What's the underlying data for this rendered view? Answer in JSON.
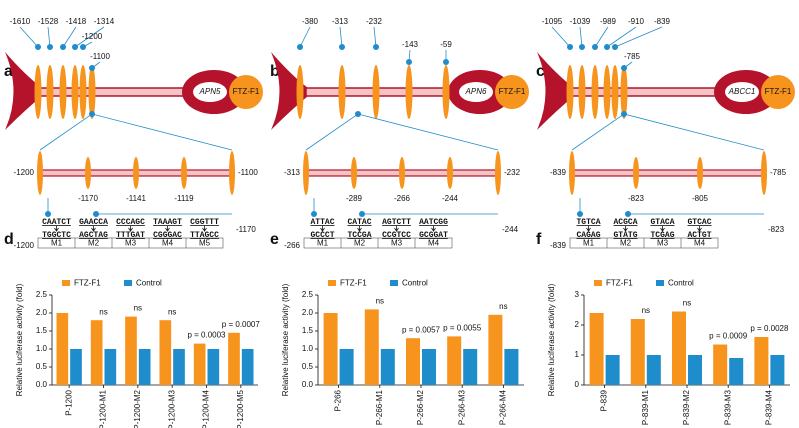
{
  "panels": [
    {
      "letter": "a",
      "gene": "APN5",
      "factor": "FTZ-F1",
      "sites": [
        "-1610",
        "-1528",
        "-1418",
        "-1314",
        "-1200",
        "-1100"
      ],
      "zoom": {
        "start": "-1200",
        "end": "-1100",
        "sites": [
          "-1170",
          "-1141",
          "-1119"
        ]
      },
      "motif": {
        "start": "-1200",
        "end": "-1170",
        "motifs": [
          {
            "top": "CAATCT",
            "bottom": "TGGCTC",
            "name": "M1",
            "color": "#c8642a"
          },
          {
            "top": "GAACCA",
            "bottom": "AGCTAG",
            "name": "M2",
            "color": "#4a7fc1"
          },
          {
            "top": "CCCAGC",
            "bottom": "TTTGAT",
            "name": "M3",
            "color": "#5a8a2a"
          },
          {
            "top": "TAAAGT",
            "bottom": "CGGGAC",
            "name": "M4",
            "color": "#6a3d9a"
          },
          {
            "top": "CGGTTT",
            "bottom": "TTAGCC",
            "name": "M5",
            "color": "#d0287a"
          }
        ]
      }
    },
    {
      "letter": "b",
      "gene": "APN6",
      "factor": "FTZ-F1",
      "sites": [
        "-380",
        "-313",
        "-232",
        "-143",
        "-59"
      ],
      "zoom": {
        "start": "-313",
        "end": "-232",
        "sites": [
          "-289",
          "-266",
          "-244"
        ]
      },
      "motif": {
        "start": "-266",
        "end": "-244",
        "motifs": [
          {
            "top": "ATTAC",
            "bottom": "GCCCT",
            "name": "M1",
            "color": "#c8642a"
          },
          {
            "top": "CATAC",
            "bottom": "TCCGA",
            "name": "M2",
            "color": "#5a8a2a"
          },
          {
            "top": "AGTCTT",
            "bottom": "CCGTCC",
            "name": "M3",
            "color": "#6a3d9a"
          },
          {
            "top": "AATCGG",
            "bottom": "GCGGAT",
            "name": "M4",
            "color": "#d0287a"
          }
        ]
      }
    },
    {
      "letter": "c",
      "gene": "ABCC1",
      "factor": "FTZ-F1",
      "sites": [
        "-1095",
        "-1039",
        "-989",
        "-910",
        "-839",
        "-785"
      ],
      "zoom": {
        "start": "-839",
        "end": "-785",
        "sites": [
          "-823",
          "-805"
        ]
      },
      "motif": {
        "start": "-839",
        "end": "-823",
        "motifs": [
          {
            "top": "TGTCA",
            "bottom": "CAGAG",
            "name": "M1",
            "color": "#c8642a"
          },
          {
            "top": "ACGCA",
            "bottom": "GTATG",
            "name": "M2",
            "color": "#5a8a2a"
          },
          {
            "top": "GTACA",
            "bottom": "TCGAG",
            "name": "M3",
            "color": "#6a3d9a"
          },
          {
            "top": "GTCAC",
            "bottom": "ACTGT",
            "name": "M4",
            "color": "#d0287a"
          }
        ]
      }
    }
  ],
  "chart_data": [
    {
      "type": "bar",
      "label": "d",
      "ylabel": "Relative luciferase activity (fold)",
      "categories": [
        "P-1200",
        "P-1200-M1",
        "P-1200-M2",
        "P-1200-M3",
        "P-1200-M4",
        "P-1200-M5"
      ],
      "series": [
        {
          "name": "FTZ-F1",
          "color": "#f7941d",
          "values": [
            2.0,
            1.8,
            1.9,
            1.8,
            1.15,
            1.45
          ]
        },
        {
          "name": "Control",
          "color": "#1f8ccb",
          "values": [
            1.0,
            1.0,
            1.0,
            1.0,
            1.0,
            1.0
          ]
        }
      ],
      "annotations": [
        null,
        "ns",
        "ns",
        "ns",
        "p = 0.0003",
        "p = 0.0007"
      ],
      "ylim": [
        0,
        2.5
      ],
      "yticks": [
        {
          "value": 0,
          "label": "0.0"
        },
        0.5,
        {
          "value": 1,
          "label": "1.0"
        },
        1.5,
        {
          "value": 2,
          "label": "2.0"
        },
        2.5
      ]
    },
    {
      "type": "bar",
      "label": "e",
      "ylabel": "Relative luciferase activity (fold)",
      "categories": [
        "P-266",
        "P-266-M1",
        "P-266-M2",
        "P-266-M3",
        "P-266-M4"
      ],
      "series": [
        {
          "name": "FTZ-F1",
          "color": "#f7941d",
          "values": [
            2.0,
            2.1,
            1.3,
            1.35,
            1.95
          ]
        },
        {
          "name": "Control",
          "color": "#1f8ccb",
          "values": [
            1.0,
            1.0,
            1.0,
            1.0,
            1.0
          ]
        }
      ],
      "annotations": [
        null,
        "ns",
        "p = 0.0057",
        "p = 0.0055",
        "ns"
      ],
      "ylim": [
        0,
        2.5
      ],
      "yticks": [
        {
          "value": 0,
          "label": "0.0"
        },
        0.5,
        {
          "value": 1,
          "label": "1.0"
        },
        1.5,
        {
          "value": 2,
          "label": "2.0"
        },
        2.5
      ]
    },
    {
      "type": "bar",
      "label": "f",
      "ylabel": "Relative luciferase activity (fold)",
      "categories": [
        "P-839",
        "P-839-M1",
        "P-839-M2",
        "P-839-M3",
        "P-839-M4"
      ],
      "series": [
        {
          "name": "FTZ-F1",
          "color": "#f7941d",
          "values": [
            2.4,
            2.2,
            2.45,
            1.35,
            1.6
          ]
        },
        {
          "name": "Control",
          "color": "#1f8ccb",
          "values": [
            1.0,
            1.0,
            1.0,
            0.9,
            1.0
          ]
        }
      ],
      "annotations": [
        null,
        "ns",
        "ns",
        "p = 0.0009",
        "p = 0.0028"
      ],
      "ylim": [
        0,
        3
      ],
      "yticks": [
        0,
        1,
        2,
        3
      ]
    }
  ]
}
